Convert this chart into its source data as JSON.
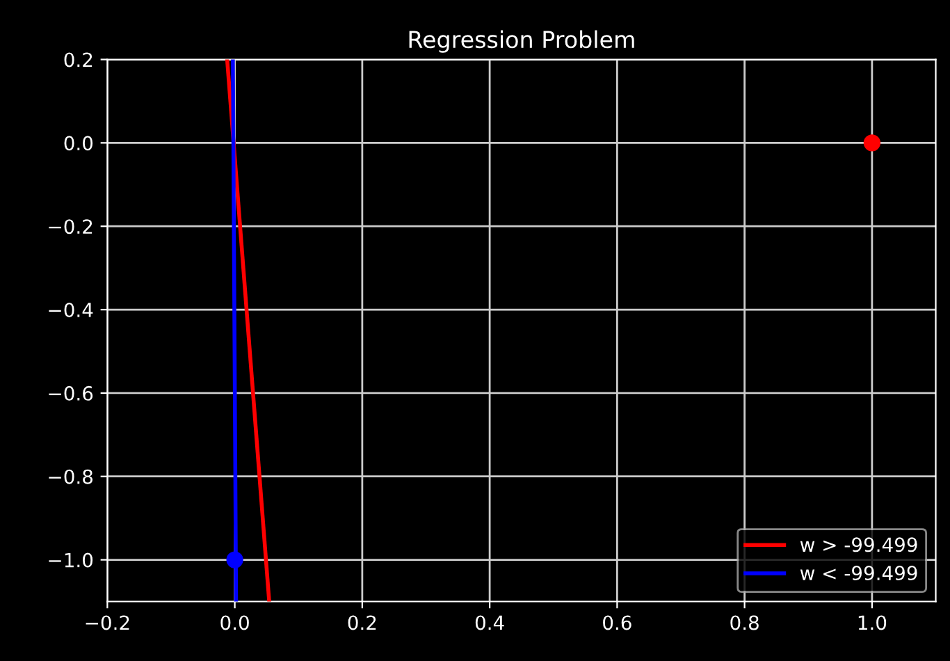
{
  "chart_data": {
    "type": "line",
    "title": "Regression Problem",
    "xlim": [
      -0.2,
      1.1
    ],
    "xticks": [
      {
        "value": -0.2,
        "label": "−0.2"
      },
      {
        "value": 0,
        "label": "0.0"
      },
      0.2,
      0.4,
      0.6,
      0.8,
      {
        "value": 1,
        "label": "1.0"
      }
    ],
    "ylim": [
      -1.1,
      0.2
    ],
    "yticks": [
      {
        "value": -1.0,
        "label": "−1.0"
      },
      {
        "value": -0.8,
        "label": "−0.8"
      },
      {
        "value": -0.6,
        "label": "−0.6"
      },
      {
        "value": -0.4,
        "label": "−0.4"
      },
      {
        "value": -0.2,
        "label": "−0.2"
      },
      {
        "value": 0,
        "label": "0.0"
      },
      0.2
    ],
    "grid": true,
    "legend": "bottom right",
    "series": [
      {
        "name": "w > -99.499",
        "color": "#ff0000",
        "x": [
          -0.012,
          0.054
        ],
        "values": [
          0.2,
          -1.1
        ]
      },
      {
        "name": "w < -99.499",
        "color": "#0000ff",
        "x": [
          -0.003,
          0.002
        ],
        "values": [
          0.2,
          -1.1
        ]
      },
      {
        "type": "scatter",
        "color": "#ff0000",
        "x": [
          1.0
        ],
        "values": [
          0.0
        ],
        "marker": "circle"
      },
      {
        "type": "scatter",
        "color": "#0000ff",
        "x": [
          0.0
        ],
        "values": [
          -1.0
        ],
        "marker": "circle"
      }
    ]
  }
}
